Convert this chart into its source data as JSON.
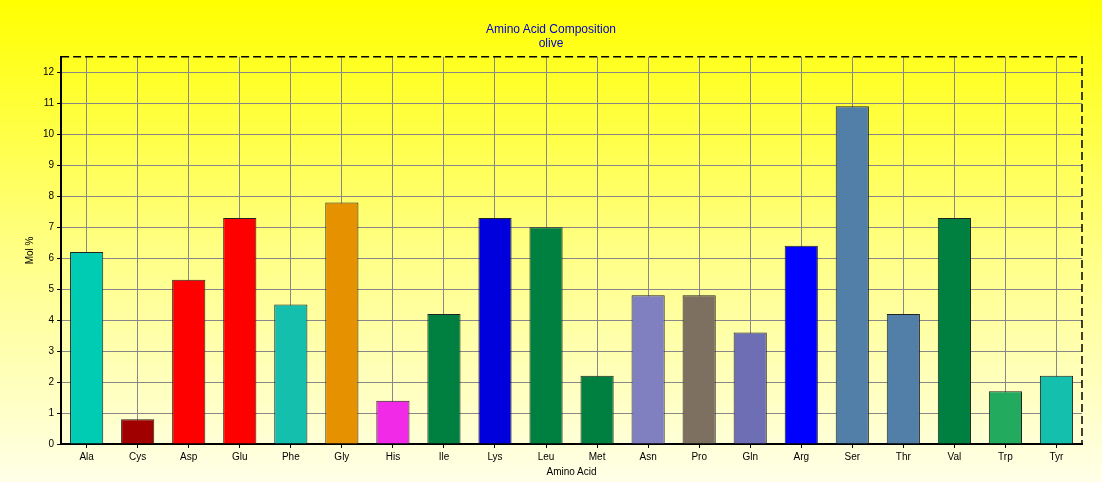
{
  "chart_data": {
    "type": "bar",
    "title": "Amino Acid Composition",
    "subtitle": "olive",
    "xlabel": "Amino Acid",
    "ylabel": "Mol %",
    "categories": [
      "Ala",
      "Cys",
      "Asp",
      "Glu",
      "Phe",
      "Gly",
      "His",
      "Ile",
      "Lys",
      "Leu",
      "Met",
      "Asn",
      "Pro",
      "Gln",
      "Arg",
      "Ser",
      "Thr",
      "Val",
      "Trp",
      "Tyr"
    ],
    "values": [
      6.2,
      0.8,
      5.3,
      7.3,
      4.5,
      7.8,
      1.4,
      4.2,
      7.3,
      7.0,
      2.2,
      4.8,
      4.8,
      3.6,
      6.4,
      10.9,
      4.2,
      7.3,
      1.7,
      2.2
    ],
    "colors": [
      "#00ccb4",
      "#a00000",
      "#ff0000",
      "#ff0000",
      "#14bfad",
      "#e69100",
      "#f02ae6",
      "#008040",
      "#0000dd",
      "#008040",
      "#008040",
      "#8080c0",
      "#7d7060",
      "#6e6eb4",
      "#0000ff",
      "#527fa8",
      "#527fa8",
      "#008040",
      "#22aa5e",
      "#14bfad"
    ],
    "ylim": [
      0,
      12.5
    ],
    "yticks": [
      0,
      1,
      2,
      3,
      4,
      5,
      6,
      7,
      8,
      9,
      10,
      11,
      12
    ],
    "grid": true,
    "legend": false
  }
}
